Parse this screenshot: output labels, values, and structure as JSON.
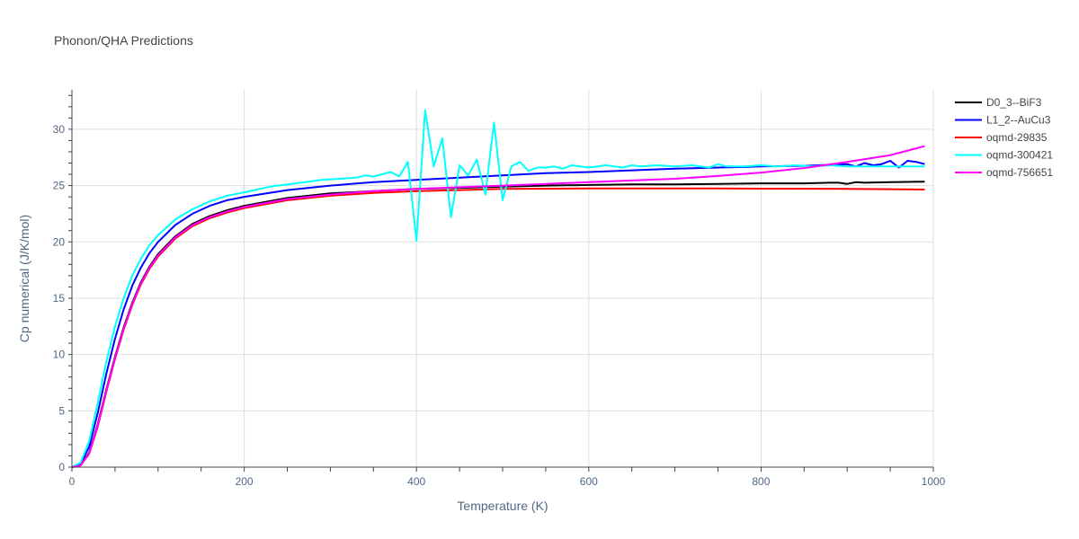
{
  "chart_data": {
    "type": "line",
    "title": "Phonon/QHA Predictions",
    "xlabel": "Temperature (K)",
    "ylabel": "Cp numerical (J/K/mol)",
    "xlim": [
      0,
      1000
    ],
    "ylim": [
      0,
      33.5
    ],
    "xticks": [
      0,
      200,
      400,
      600,
      800,
      1000
    ],
    "yticks": [
      0,
      5,
      10,
      15,
      20,
      25,
      30
    ],
    "grid": true,
    "legend_position": "top-right",
    "series": [
      {
        "name": "D0_3--BiF3",
        "color": "#000000",
        "x": [
          0,
          10,
          20,
          30,
          40,
          50,
          60,
          70,
          80,
          90,
          100,
          120,
          140,
          160,
          180,
          200,
          250,
          300,
          350,
          400,
          450,
          500,
          550,
          600,
          650,
          700,
          750,
          800,
          850,
          880,
          890,
          900,
          910,
          920,
          950,
          990
        ],
        "y": [
          0,
          0.2,
          1.3,
          3.8,
          6.9,
          9.8,
          12.4,
          14.6,
          16.4,
          17.8,
          18.9,
          20.5,
          21.6,
          22.3,
          22.8,
          23.2,
          23.9,
          24.3,
          24.5,
          24.7,
          24.8,
          24.9,
          25.0,
          25.05,
          25.1,
          25.1,
          25.15,
          25.2,
          25.2,
          25.25,
          25.25,
          25.15,
          25.3,
          25.25,
          25.3,
          25.35
        ]
      },
      {
        "name": "L1_2--AuCu3",
        "color": "#0000ff",
        "x": [
          0,
          10,
          20,
          30,
          40,
          50,
          60,
          70,
          80,
          90,
          100,
          120,
          140,
          160,
          180,
          200,
          250,
          300,
          350,
          400,
          450,
          500,
          550,
          600,
          650,
          700,
          750,
          780,
          800,
          850,
          900,
          910,
          920,
          930,
          940,
          950,
          960,
          970,
          980,
          990
        ],
        "y": [
          0,
          0.3,
          1.8,
          4.8,
          8.3,
          11.4,
          14.0,
          16.1,
          17.7,
          19.0,
          20.0,
          21.5,
          22.5,
          23.2,
          23.7,
          24.0,
          24.6,
          25.0,
          25.3,
          25.5,
          25.7,
          25.9,
          26.1,
          26.2,
          26.35,
          26.5,
          26.6,
          26.65,
          26.7,
          26.75,
          26.9,
          26.7,
          27.0,
          26.8,
          26.9,
          27.2,
          26.6,
          27.2,
          27.1,
          26.9
        ]
      },
      {
        "name": "oqmd-29835",
        "color": "#ff0000",
        "x": [
          0,
          10,
          20,
          30,
          40,
          50,
          60,
          70,
          80,
          90,
          100,
          120,
          140,
          160,
          180,
          200,
          250,
          300,
          350,
          400,
          450,
          500,
          550,
          600,
          650,
          700,
          750,
          800,
          850,
          900,
          950,
          990
        ],
        "y": [
          0,
          0.15,
          1.2,
          3.6,
          6.7,
          9.6,
          12.2,
          14.4,
          16.2,
          17.6,
          18.7,
          20.3,
          21.4,
          22.1,
          22.6,
          23.0,
          23.7,
          24.1,
          24.35,
          24.5,
          24.6,
          24.7,
          24.72,
          24.75,
          24.75,
          24.75,
          24.74,
          24.73,
          24.72,
          24.7,
          24.68,
          24.65
        ]
      },
      {
        "name": "oqmd-300421",
        "color": "#00ffff",
        "x": [
          0,
          10,
          20,
          30,
          40,
          50,
          60,
          70,
          80,
          90,
          100,
          120,
          140,
          160,
          180,
          200,
          230,
          260,
          290,
          310,
          330,
          340,
          350,
          370,
          380,
          390,
          400,
          410,
          420,
          430,
          440,
          450,
          460,
          470,
          480,
          490,
          500,
          510,
          520,
          530,
          540,
          550,
          560,
          570,
          580,
          590,
          600,
          620,
          640,
          650,
          660,
          680,
          700,
          720,
          740,
          750,
          760,
          780,
          800,
          820,
          840,
          860,
          880,
          900,
          950,
          990
        ],
        "y": [
          0,
          0.4,
          2.3,
          5.7,
          9.4,
          12.5,
          15.0,
          17.0,
          18.5,
          19.7,
          20.6,
          22.0,
          22.9,
          23.6,
          24.1,
          24.4,
          24.9,
          25.2,
          25.5,
          25.6,
          25.7,
          25.9,
          25.8,
          26.2,
          25.8,
          27.1,
          20.1,
          31.7,
          26.7,
          29.2,
          22.2,
          26.8,
          25.9,
          27.3,
          24.2,
          30.6,
          23.7,
          26.7,
          27.1,
          26.3,
          26.6,
          26.6,
          26.7,
          26.5,
          26.8,
          26.7,
          26.6,
          26.8,
          26.6,
          26.8,
          26.7,
          26.8,
          26.7,
          26.8,
          26.6,
          26.9,
          26.7,
          26.7,
          26.8,
          26.7,
          26.8,
          26.7,
          26.8,
          26.7,
          26.7,
          26.7
        ]
      },
      {
        "name": "oqmd-756651",
        "color": "#ff00ff",
        "x": [
          0,
          10,
          20,
          30,
          40,
          50,
          60,
          70,
          80,
          90,
          100,
          120,
          140,
          160,
          180,
          200,
          250,
          300,
          350,
          400,
          450,
          500,
          550,
          600,
          650,
          700,
          750,
          800,
          850,
          900,
          950,
          990
        ],
        "y": [
          0,
          0.15,
          1.25,
          3.7,
          6.8,
          9.7,
          12.3,
          14.5,
          16.3,
          17.7,
          18.8,
          20.4,
          21.5,
          22.2,
          22.7,
          23.1,
          23.8,
          24.2,
          24.5,
          24.7,
          24.85,
          25.0,
          25.15,
          25.3,
          25.45,
          25.6,
          25.85,
          26.15,
          26.55,
          27.1,
          27.7,
          28.5
        ]
      }
    ]
  }
}
